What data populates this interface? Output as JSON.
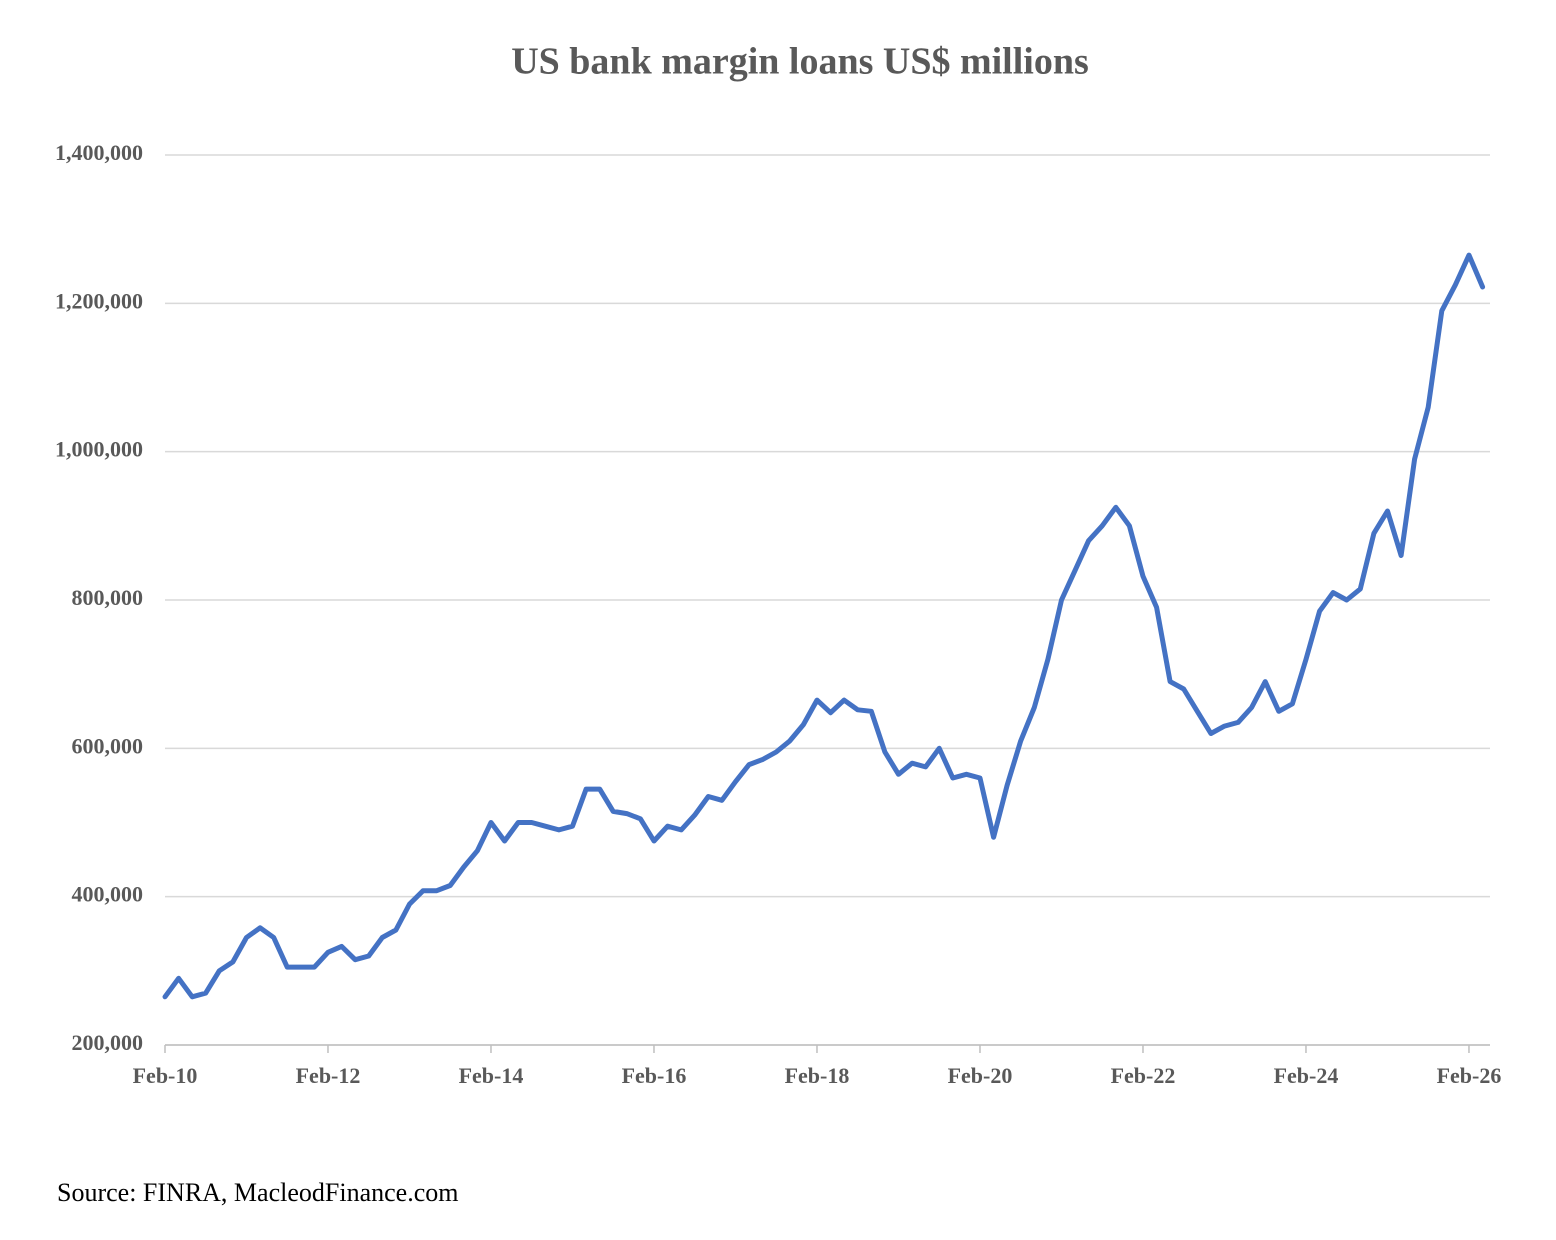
{
  "chart_data": {
    "type": "line",
    "title": "US bank margin loans US$ millions",
    "source": "Source: FINRA, MacleodFinance.com",
    "categories": [
      "Feb-10",
      null,
      null,
      null,
      null,
      null,
      null,
      null,
      null,
      null,
      null,
      null,
      "Feb-12",
      null,
      null,
      null,
      null,
      null,
      null,
      null,
      null,
      null,
      null,
      null,
      "Feb-14",
      null,
      null,
      null,
      null,
      null,
      null,
      null,
      null,
      null,
      null,
      null,
      "Feb-16",
      null,
      null,
      null,
      null,
      null,
      null,
      null,
      null,
      null,
      null,
      null,
      "Feb-18",
      null,
      null,
      null,
      null,
      null,
      null,
      null,
      null,
      null,
      null,
      null,
      "Feb-20",
      null,
      null,
      null,
      null,
      null,
      null,
      null,
      null,
      null,
      null,
      null,
      "Feb-22",
      null,
      null,
      null,
      null,
      null,
      null,
      null,
      null,
      null,
      null,
      null,
      "Feb-24",
      null,
      null,
      null,
      null,
      null,
      null,
      null,
      null,
      null,
      null,
      null,
      "Feb-26",
      null
    ],
    "series": [
      {
        "name": "Margin loans",
        "color": "#4472c4",
        "values": [
          265000,
          290000,
          265000,
          270000,
          300000,
          312000,
          345000,
          358000,
          345000,
          305000,
          305000,
          305000,
          325000,
          333000,
          315000,
          320000,
          345000,
          355000,
          390000,
          408000,
          408000,
          415000,
          440000,
          462000,
          500000,
          475000,
          500000,
          500000,
          495000,
          490000,
          495000,
          545000,
          545000,
          515000,
          512000,
          505000,
          475000,
          495000,
          490000,
          510000,
          535000,
          530000,
          555000,
          578000,
          585000,
          595000,
          610000,
          632000,
          665000,
          648000,
          665000,
          652000,
          650000,
          595000,
          565000,
          580000,
          575000,
          600000,
          560000,
          565000,
          560000,
          480000,
          550000,
          610000,
          655000,
          720000,
          800000,
          840000,
          880000,
          900000,
          925000,
          900000,
          832000,
          790000,
          690000,
          680000,
          650000,
          620000,
          630000,
          635000,
          655000,
          690000,
          650000,
          660000,
          720000,
          785000,
          810000,
          800000,
          815000,
          890000,
          920000,
          860000,
          990000,
          1060000,
          1190000,
          1225000,
          1265000,
          1222000
        ]
      }
    ],
    "ylim": [
      200000,
      1400000
    ],
    "yticks": [
      {
        "value": 200000,
        "label": "200,000"
      },
      {
        "value": 400000,
        "label": "400,000"
      },
      {
        "value": 600000,
        "label": "600,000"
      },
      {
        "value": 800000,
        "label": "800,000"
      },
      {
        "value": 1000000,
        "label": "1,000,000"
      },
      {
        "value": 1200000,
        "label": "1,200,000"
      },
      {
        "value": 1400000,
        "label": "1,400,000"
      }
    ],
    "grid": true
  }
}
